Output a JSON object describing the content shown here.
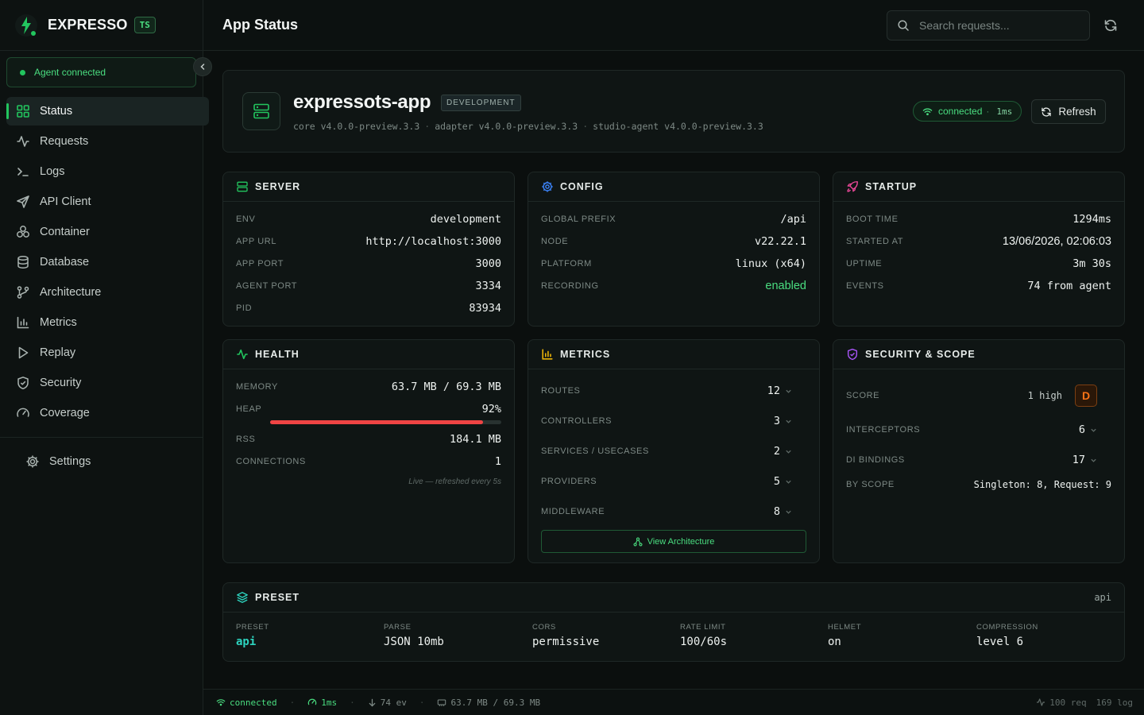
{
  "brand": {
    "name": "EXPRESSO",
    "badge": "TS"
  },
  "agent": {
    "status": "Agent connected"
  },
  "nav": [
    {
      "label": "Status",
      "icon": "grid-icon"
    },
    {
      "label": "Requests",
      "icon": "activity-icon"
    },
    {
      "label": "Logs",
      "icon": "terminal-icon"
    },
    {
      "label": "API Client",
      "icon": "send-icon"
    },
    {
      "label": "Container",
      "icon": "boxes-icon"
    },
    {
      "label": "Database",
      "icon": "database-icon"
    },
    {
      "label": "Architecture",
      "icon": "git-branch-icon"
    },
    {
      "label": "Metrics",
      "icon": "bar-chart-icon"
    },
    {
      "label": "Replay",
      "icon": "play-icon"
    },
    {
      "label": "Security",
      "icon": "shield-icon"
    },
    {
      "label": "Coverage",
      "icon": "gauge-icon"
    }
  ],
  "settings_label": "Settings",
  "topbar": {
    "title": "App Status",
    "search_placeholder": "Search requests..."
  },
  "app": {
    "name": "expressots-app",
    "env_badge": "DEVELOPMENT",
    "versions": [
      "core v4.0.0-preview.3.3",
      "adapter v4.0.0-preview.3.3",
      "studio-agent v4.0.0-preview.3.3"
    ],
    "connection": "connected",
    "latency": "1ms",
    "refresh_label": "Refresh"
  },
  "server": {
    "title": "SERVER",
    "rows": [
      {
        "k": "ENV",
        "v": "development"
      },
      {
        "k": "APP URL",
        "v": "http://localhost:3000"
      },
      {
        "k": "APP PORT",
        "v": "3000"
      },
      {
        "k": "AGENT PORT",
        "v": "3334"
      },
      {
        "k": "PID",
        "v": "83934"
      }
    ]
  },
  "config": {
    "title": "CONFIG",
    "rows": [
      {
        "k": "GLOBAL PREFIX",
        "v": "/api"
      },
      {
        "k": "NODE",
        "v": "v22.22.1"
      },
      {
        "k": "PLATFORM",
        "v": "linux (x64)"
      },
      {
        "k": "RECORDING",
        "v": "enabled"
      }
    ]
  },
  "startup": {
    "title": "STARTUP",
    "rows": [
      {
        "k": "BOOT TIME",
        "v": "1294ms"
      },
      {
        "k": "STARTED AT",
        "v": "13/06/2026, 02:06:03"
      },
      {
        "k": "UPTIME",
        "v": "3m 30s"
      },
      {
        "k": "EVENTS",
        "v": "74 from agent"
      }
    ]
  },
  "health": {
    "title": "HEALTH",
    "memory_label": "MEMORY",
    "memory": "63.7 MB / 69.3 MB",
    "heap_label": "HEAP",
    "heap": "92%",
    "heap_fraction": 0.92,
    "rss_label": "RSS",
    "rss": "184.1 MB",
    "connections_label": "CONNECTIONS",
    "connections": "1",
    "note": "Live — refreshed every 5s"
  },
  "metrics": {
    "title": "METRICS",
    "rows": [
      {
        "k": "ROUTES",
        "v": "12"
      },
      {
        "k": "CONTROLLERS",
        "v": "3"
      },
      {
        "k": "SERVICES / USECASES",
        "v": "2"
      },
      {
        "k": "PROVIDERS",
        "v": "5"
      },
      {
        "k": "MIDDLEWARE",
        "v": "8"
      }
    ],
    "view_arch": "View Architecture"
  },
  "security": {
    "title": "SECURITY & SCOPE",
    "score_label": "SCORE",
    "score_text": "1 high",
    "grade": "D",
    "interceptors_label": "INTERCEPTORS",
    "interceptors": "6",
    "di_label": "DI BINDINGS",
    "di": "17",
    "scope_label": "BY SCOPE",
    "scope": "Singleton: 8, Request: 9"
  },
  "preset": {
    "title": "PRESET",
    "right": "api",
    "cols": [
      {
        "k": "PRESET",
        "v": "api"
      },
      {
        "k": "PARSE",
        "v": "JSON 10mb"
      },
      {
        "k": "CORS",
        "v": "permissive"
      },
      {
        "k": "RATE LIMIT",
        "v": "100/60s"
      },
      {
        "k": "HELMET",
        "v": "on"
      },
      {
        "k": "COMPRESSION",
        "v": "level 6"
      }
    ]
  },
  "footer": {
    "connection": "connected",
    "latency": "1ms",
    "events": "74 ev",
    "memory": "63.7 MB / 69.3 MB",
    "requests": "100 req",
    "logs": "169 log"
  },
  "colors": {
    "accent": "#22c55e",
    "heap_bar": "#ef4444",
    "grade": "#f97316"
  }
}
